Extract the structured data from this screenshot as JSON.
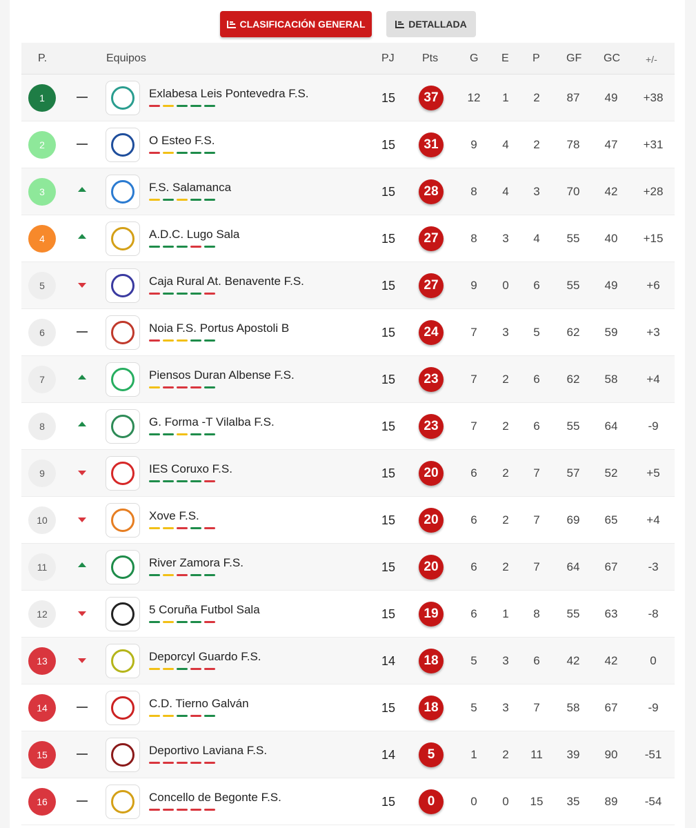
{
  "tabs": {
    "general_label": "CLASIFICACIÓN GENERAL",
    "detail_label": "DETALLADA"
  },
  "headers": {
    "pos": "P.",
    "team": "Equipos",
    "pj": "PJ",
    "pts": "Pts",
    "g": "G",
    "e": "E",
    "p": "P",
    "gf": "GF",
    "gc": "GC",
    "dif": "+/-"
  },
  "colors": {
    "champion": "#1e7d45",
    "promotion": "#8ee89a",
    "playoff": "#f7892b",
    "relegation": "#d9363e",
    "neutral": "#eeeeee",
    "win": "#1e8c4a",
    "draw": "#f2c017",
    "loss": "#d9363e"
  },
  "rows": [
    {
      "pos": "1",
      "zone": "champion",
      "trend": "same",
      "team": "Exlabesa Leis Pontevedra F.S.",
      "logo_color": "#2a9d8f",
      "form": [
        "L",
        "D",
        "W",
        "W",
        "W"
      ],
      "pj": "15",
      "pts": "37",
      "g": "12",
      "e": "1",
      "p": "2",
      "gf": "87",
      "gc": "49",
      "dif": "+38"
    },
    {
      "pos": "2",
      "zone": "promotion",
      "trend": "same",
      "team": "O Esteo F.S.",
      "logo_color": "#1f4e9c",
      "form": [
        "L",
        "D",
        "W",
        "W",
        "W"
      ],
      "pj": "15",
      "pts": "31",
      "g": "9",
      "e": "4",
      "p": "2",
      "gf": "78",
      "gc": "47",
      "dif": "+31"
    },
    {
      "pos": "3",
      "zone": "promotion",
      "trend": "up",
      "team": "F.S. Salamanca",
      "logo_color": "#2b7bd1",
      "form": [
        "D",
        "W",
        "D",
        "W",
        "W"
      ],
      "pj": "15",
      "pts": "28",
      "g": "8",
      "e": "4",
      "p": "3",
      "gf": "70",
      "gc": "42",
      "dif": "+28"
    },
    {
      "pos": "4",
      "zone": "playoff",
      "trend": "up",
      "team": "A.D.C. Lugo Sala",
      "logo_color": "#d4a017",
      "form": [
        "W",
        "W",
        "W",
        "L",
        "W"
      ],
      "pj": "15",
      "pts": "27",
      "g": "8",
      "e": "3",
      "p": "4",
      "gf": "55",
      "gc": "40",
      "dif": "+15"
    },
    {
      "pos": "5",
      "zone": "neutral",
      "trend": "down",
      "team": "Caja Rural At. Benavente F.S.",
      "logo_color": "#3a3aa0",
      "form": [
        "L",
        "W",
        "W",
        "W",
        "L"
      ],
      "pj": "15",
      "pts": "27",
      "g": "9",
      "e": "0",
      "p": "6",
      "gf": "55",
      "gc": "49",
      "dif": "+6"
    },
    {
      "pos": "6",
      "zone": "neutral",
      "trend": "same",
      "team": "Noia F.S. Portus Apostoli B",
      "logo_color": "#c0392b",
      "form": [
        "L",
        "D",
        "D",
        "W",
        "W"
      ],
      "pj": "15",
      "pts": "24",
      "g": "7",
      "e": "3",
      "p": "5",
      "gf": "62",
      "gc": "59",
      "dif": "+3"
    },
    {
      "pos": "7",
      "zone": "neutral",
      "trend": "up",
      "team": "Piensos Duran Albense F.S.",
      "logo_color": "#27ae60",
      "form": [
        "D",
        "L",
        "L",
        "L",
        "W"
      ],
      "pj": "15",
      "pts": "23",
      "g": "7",
      "e": "2",
      "p": "6",
      "gf": "62",
      "gc": "58",
      "dif": "+4"
    },
    {
      "pos": "8",
      "zone": "neutral",
      "trend": "up",
      "team": "G. Forma -T Vilalba F.S.",
      "logo_color": "#2e8b57",
      "form": [
        "W",
        "W",
        "D",
        "W",
        "W"
      ],
      "pj": "15",
      "pts": "23",
      "g": "7",
      "e": "2",
      "p": "6",
      "gf": "55",
      "gc": "64",
      "dif": "-9"
    },
    {
      "pos": "9",
      "zone": "neutral",
      "trend": "down",
      "team": "IES Coruxo F.S.",
      "logo_color": "#d62828",
      "form": [
        "W",
        "W",
        "W",
        "W",
        "L"
      ],
      "pj": "15",
      "pts": "20",
      "g": "6",
      "e": "2",
      "p": "7",
      "gf": "57",
      "gc": "52",
      "dif": "+5"
    },
    {
      "pos": "10",
      "zone": "neutral",
      "trend": "down",
      "team": "Xove F.S.",
      "logo_color": "#e67e22",
      "form": [
        "D",
        "D",
        "L",
        "W",
        "L"
      ],
      "pj": "15",
      "pts": "20",
      "g": "6",
      "e": "2",
      "p": "7",
      "gf": "69",
      "gc": "65",
      "dif": "+4"
    },
    {
      "pos": "11",
      "zone": "neutral",
      "trend": "up",
      "team": "River Zamora F.S.",
      "logo_color": "#1e8c4a",
      "form": [
        "W",
        "D",
        "L",
        "W",
        "W"
      ],
      "pj": "15",
      "pts": "20",
      "g": "6",
      "e": "2",
      "p": "7",
      "gf": "64",
      "gc": "67",
      "dif": "-3"
    },
    {
      "pos": "12",
      "zone": "neutral",
      "trend": "down",
      "team": "5 Coruña Futbol Sala",
      "logo_color": "#222222",
      "form": [
        "W",
        "D",
        "W",
        "W",
        "L"
      ],
      "pj": "15",
      "pts": "19",
      "g": "6",
      "e": "1",
      "p": "8",
      "gf": "55",
      "gc": "63",
      "dif": "-8"
    },
    {
      "pos": "13",
      "zone": "relegation",
      "trend": "down",
      "team": "Deporcyl Guardo F.S.",
      "logo_color": "#b5b51a",
      "form": [
        "D",
        "D",
        "W",
        "L",
        "L"
      ],
      "pj": "14",
      "pts": "18",
      "g": "5",
      "e": "3",
      "p": "6",
      "gf": "42",
      "gc": "42",
      "dif": "0"
    },
    {
      "pos": "14",
      "zone": "relegation",
      "trend": "same",
      "team": "C.D. Tierno Galván",
      "logo_color": "#cc2222",
      "form": [
        "D",
        "D",
        "W",
        "L",
        "W"
      ],
      "pj": "15",
      "pts": "18",
      "g": "5",
      "e": "3",
      "p": "7",
      "gf": "58",
      "gc": "67",
      "dif": "-9"
    },
    {
      "pos": "15",
      "zone": "relegation",
      "trend": "same",
      "team": "Deportivo Laviana F.S.",
      "logo_color": "#8b1a1a",
      "form": [
        "L",
        "L",
        "L",
        "L",
        "L"
      ],
      "pj": "14",
      "pts": "5",
      "g": "1",
      "e": "2",
      "p": "11",
      "gf": "39",
      "gc": "90",
      "dif": "-51"
    },
    {
      "pos": "16",
      "zone": "relegation",
      "trend": "same",
      "team": "Concello de Begonte F.S.",
      "logo_color": "#d4a017",
      "form": [
        "L",
        "L",
        "L",
        "L",
        "L"
      ],
      "pj": "15",
      "pts": "0",
      "g": "0",
      "e": "0",
      "p": "15",
      "gf": "35",
      "gc": "89",
      "dif": "-54"
    }
  ]
}
